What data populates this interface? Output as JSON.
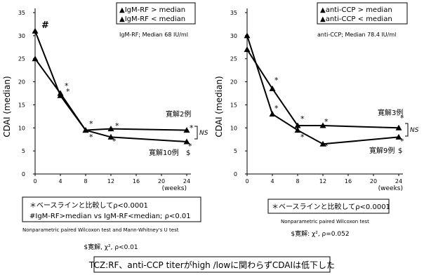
{
  "chart_data": [
    {
      "type": "line",
      "ylabel": "CDAI (median)",
      "xunit": "(weeks)",
      "ylim": [
        0,
        35
      ],
      "xlim": [
        0,
        24
      ],
      "yticks": [
        "0",
        "5",
        "10",
        "15",
        "20",
        "25",
        "30",
        "35"
      ],
      "xticks": [
        "0",
        "4",
        "8",
        "12",
        "16",
        "20",
        "24"
      ],
      "legend": [
        "▲IgM-RF > median",
        "▲IgM-RF < median"
      ],
      "median_note": "IgM-RF; Median  68 IU/ml",
      "series": [
        {
          "name": "▲IgM-RF > median",
          "x": [
            0,
            4,
            8,
            12,
            24
          ],
          "y": [
            31,
            17,
            9.5,
            8,
            7
          ]
        },
        {
          "name": "▲IgM-RF < median",
          "x": [
            0,
            4,
            8,
            12,
            24
          ],
          "y": [
            25,
            17.5,
            9.5,
            9.8,
            9.5
          ]
        }
      ],
      "annotations": {
        "hash": "#",
        "star": "*",
        "remission_upper": "寛解2例",
        "remission_lower": "寛解10例",
        "dollar": "$",
        "ns": "NS"
      },
      "footnote": {
        "line1": "＊ベースラインと比較してρ<0.0001",
        "line2": "#IgM-RF>median vs IgM-RF<median; ρ<0.01"
      },
      "test_note": "Nonparametric paired Wilcoxon test and Mann-Whitney's U test",
      "remission_note": "$寛解, χ², ρ<0.01"
    },
    {
      "type": "line",
      "ylabel": "CDAI (median)",
      "xunit": "(weeks)",
      "ylim": [
        0,
        35
      ],
      "xlim": [
        0,
        24
      ],
      "yticks": [
        "0",
        "5",
        "10",
        "15",
        "20",
        "25",
        "30",
        "35"
      ],
      "xticks": [
        "0",
        "4",
        "8",
        "12",
        "16",
        "20",
        "24"
      ],
      "legend": [
        "▲anti-CCP > median",
        "▲anti-CCP < median"
      ],
      "median_note": "anti-CCP; Median  78.4 IU/ml",
      "series": [
        {
          "name": "▲anti-CCP > median",
          "x": [
            0,
            4,
            8,
            12,
            24
          ],
          "y": [
            30,
            13,
            9.5,
            6.5,
            8
          ]
        },
        {
          "name": "▲anti-CCP < median",
          "x": [
            0,
            4,
            8,
            12,
            24
          ],
          "y": [
            27,
            18.5,
            10.5,
            10.5,
            10
          ]
        }
      ],
      "annotations": {
        "star": "*",
        "remission_upper": "寛解3例",
        "remission_lower": "寛解9例",
        "dollar": "$",
        "ns": "NS"
      },
      "footnote": {
        "line1": "＊ベースラインと比較してρ<0.0001"
      },
      "test_note": "Nonparametric paired Wilcoxon test",
      "remission_note": "$寛解: χ², ρ=0.052"
    }
  ],
  "conclusion": "TCZ:RF、anti-CCP titerがhigh  /lowに関わらずCDAIは低下した"
}
